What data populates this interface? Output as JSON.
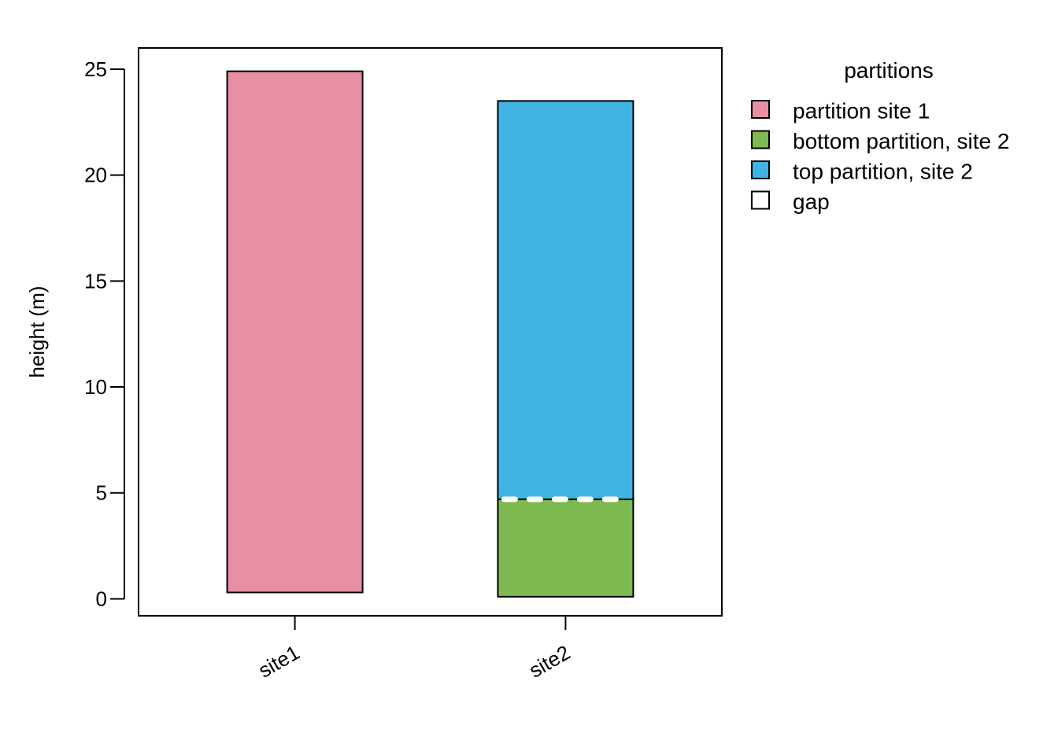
{
  "chart_data": {
    "type": "bar",
    "stacked": true,
    "categories": [
      "site1",
      "site2"
    ],
    "ylabel": "height (m)",
    "xlabel": "",
    "ylim": [
      -0.8,
      26
    ],
    "yticks": [
      0,
      5,
      10,
      15,
      20,
      25
    ],
    "x_tick_label_rotation": "angled",
    "grid": false,
    "segments": [
      {
        "category": "site1",
        "name": "partition site 1",
        "bottom": 0.3,
        "top": 24.9,
        "color": "#E78FA4"
      },
      {
        "category": "site2",
        "name": "bottom partition, site 2",
        "bottom": 0.1,
        "top": 4.7,
        "color": "#7DBA51"
      },
      {
        "category": "site2",
        "name": "top partition, site 2",
        "bottom": 4.7,
        "top": 23.5,
        "color": "#41B3E3"
      }
    ],
    "gaps": [
      {
        "category": "site2",
        "at": 4.7
      }
    ],
    "legend": {
      "title": "partitions",
      "placement": "right",
      "items": [
        {
          "label": "partition site 1",
          "color": "#E78FA4"
        },
        {
          "label": "bottom partition, site 2",
          "color": "#7DBA51"
        },
        {
          "label": "top partition, site 2",
          "color": "#41B3E3"
        },
        {
          "label": "gap",
          "color": "#FFFFFF"
        }
      ]
    }
  }
}
